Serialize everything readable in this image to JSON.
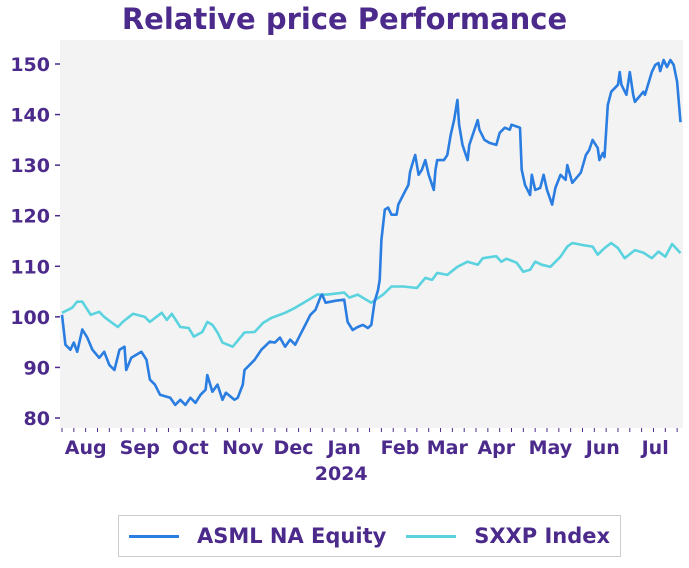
{
  "chart_data": {
    "type": "line",
    "title": "Relative price Performance",
    "xlabel": "",
    "ylabel": "",
    "x_unit": "trading days from start (mid-July 2023)",
    "xlim": [
      0,
      366
    ],
    "ylim": [
      79,
      153
    ],
    "yticks": [
      80,
      90,
      100,
      110,
      120,
      130,
      140,
      150
    ],
    "xticks": [
      {
        "x": 14,
        "label": "Aug"
      },
      {
        "x": 46,
        "label": "Sep"
      },
      {
        "x": 76,
        "label": "Oct"
      },
      {
        "x": 107,
        "label": "Nov"
      },
      {
        "x": 137,
        "label": "Dec"
      },
      {
        "x": 167,
        "label": "Jan"
      },
      {
        "x": 200,
        "label": "Feb"
      },
      {
        "x": 228,
        "label": "Mar"
      },
      {
        "x": 257,
        "label": "Apr"
      },
      {
        "x": 289,
        "label": "May"
      },
      {
        "x": 320,
        "label": "Jun"
      },
      {
        "x": 351,
        "label": "Jul"
      }
    ],
    "year_label": {
      "x": 167,
      "label": "2024"
    },
    "grid": false,
    "legend_position": "bottom",
    "series": [
      {
        "name": "ASML NA Equity",
        "color": "#2a7de1",
        "points": [
          [
            0,
            100.4
          ],
          [
            2,
            94.5
          ],
          [
            5,
            93.5
          ],
          [
            7,
            94.9
          ],
          [
            9,
            93.1
          ],
          [
            12,
            97.5
          ],
          [
            15,
            95.9
          ],
          [
            18,
            93.5
          ],
          [
            22,
            91.9
          ],
          [
            25,
            93.1
          ],
          [
            28,
            90.5
          ],
          [
            31,
            89.5
          ],
          [
            34,
            93.5
          ],
          [
            37,
            94.1
          ],
          [
            38,
            89.5
          ],
          [
            41,
            91.9
          ],
          [
            47,
            93.1
          ],
          [
            50,
            91.5
          ],
          [
            52,
            87.6
          ],
          [
            55,
            86.6
          ],
          [
            58,
            84.6
          ],
          [
            64,
            84.0
          ],
          [
            67,
            82.6
          ],
          [
            70,
            83.6
          ],
          [
            73,
            82.6
          ],
          [
            76,
            84.0
          ],
          [
            79,
            83.0
          ],
          [
            82,
            84.6
          ],
          [
            85,
            85.6
          ],
          [
            86,
            88.5
          ],
          [
            89,
            85.2
          ],
          [
            92,
            86.6
          ],
          [
            95,
            83.6
          ],
          [
            97,
            85.0
          ],
          [
            102,
            83.6
          ],
          [
            104,
            84.0
          ],
          [
            107,
            86.6
          ],
          [
            108,
            89.5
          ],
          [
            111,
            90.5
          ],
          [
            114,
            91.5
          ],
          [
            118,
            93.5
          ],
          [
            123,
            95.1
          ],
          [
            126,
            94.9
          ],
          [
            129,
            95.9
          ],
          [
            132,
            94.1
          ],
          [
            135,
            95.5
          ],
          [
            138,
            94.5
          ],
          [
            141,
            96.5
          ],
          [
            144,
            98.4
          ],
          [
            147,
            100.4
          ],
          [
            150,
            101.4
          ],
          [
            153,
            104.0
          ],
          [
            154,
            104.4
          ],
          [
            156,
            102.8
          ],
          [
            162,
            103.2
          ],
          [
            167,
            103.4
          ],
          [
            169,
            99.0
          ],
          [
            172,
            97.4
          ],
          [
            175,
            98.0
          ],
          [
            178,
            98.4
          ],
          [
            181,
            97.8
          ],
          [
            183,
            98.4
          ],
          [
            185,
            103.0
          ],
          [
            187,
            105.3
          ],
          [
            188,
            107.3
          ],
          [
            189,
            115.2
          ],
          [
            191,
            121.2
          ],
          [
            193,
            121.6
          ],
          [
            195,
            120.2
          ],
          [
            198,
            120.2
          ],
          [
            199,
            122.2
          ],
          [
            202,
            124.2
          ],
          [
            205,
            126.1
          ],
          [
            206,
            128.7
          ],
          [
            208,
            131.0
          ],
          [
            209,
            132.0
          ],
          [
            211,
            128.1
          ],
          [
            213,
            129.1
          ],
          [
            215,
            131.0
          ],
          [
            217,
            128.1
          ],
          [
            220,
            125.1
          ],
          [
            221,
            129.1
          ],
          [
            222,
            131.0
          ],
          [
            226,
            131.0
          ],
          [
            228,
            132.0
          ],
          [
            230,
            136.0
          ],
          [
            232,
            138.9
          ],
          [
            234,
            142.9
          ],
          [
            235,
            138.0
          ],
          [
            237,
            134.0
          ],
          [
            238,
            133.0
          ],
          [
            240,
            131.0
          ],
          [
            241,
            134.0
          ],
          [
            246,
            138.9
          ],
          [
            247,
            137.0
          ],
          [
            250,
            135.0
          ],
          [
            253,
            134.4
          ],
          [
            257,
            134.0
          ],
          [
            259,
            136.4
          ],
          [
            262,
            137.4
          ],
          [
            265,
            137.0
          ],
          [
            266,
            138.0
          ],
          [
            271,
            137.4
          ],
          [
            272,
            129.1
          ],
          [
            274,
            126.1
          ],
          [
            277,
            124.1
          ],
          [
            278,
            128.1
          ],
          [
            280,
            125.1
          ],
          [
            283,
            125.5
          ],
          [
            285,
            128.1
          ],
          [
            287,
            125.1
          ],
          [
            290,
            122.2
          ],
          [
            292,
            125.5
          ],
          [
            295,
            128.1
          ],
          [
            298,
            127.1
          ],
          [
            299,
            130.0
          ],
          [
            302,
            126.5
          ],
          [
            307,
            128.5
          ],
          [
            310,
            132.0
          ],
          [
            312,
            133.0
          ],
          [
            314,
            135.0
          ],
          [
            317,
            133.4
          ],
          [
            318,
            131.0
          ],
          [
            320,
            132.4
          ],
          [
            321,
            131.6
          ],
          [
            323,
            141.9
          ],
          [
            325,
            144.5
          ],
          [
            329,
            145.9
          ],
          [
            330,
            148.4
          ],
          [
            331,
            145.9
          ],
          [
            334,
            143.9
          ],
          [
            336,
            148.4
          ],
          [
            338,
            143.9
          ],
          [
            339,
            142.5
          ],
          [
            344,
            144.5
          ],
          [
            345,
            143.9
          ],
          [
            349,
            148.4
          ],
          [
            351,
            149.8
          ],
          [
            353,
            150.2
          ],
          [
            354,
            148.6
          ],
          [
            356,
            150.8
          ],
          [
            358,
            149.4
          ],
          [
            360,
            150.8
          ],
          [
            362,
            149.8
          ],
          [
            364,
            146.5
          ],
          [
            366,
            138.5
          ]
        ]
      },
      {
        "name": "SXXP Index",
        "color": "#5ad3df",
        "points": [
          [
            0,
            100.8
          ],
          [
            6,
            101.8
          ],
          [
            9,
            103.0
          ],
          [
            12,
            103.0
          ],
          [
            17,
            100.4
          ],
          [
            22,
            101.0
          ],
          [
            25,
            100.0
          ],
          [
            33,
            98.0
          ],
          [
            36,
            99.0
          ],
          [
            42,
            100.6
          ],
          [
            49,
            100.0
          ],
          [
            52,
            99.0
          ],
          [
            59,
            100.8
          ],
          [
            62,
            99.4
          ],
          [
            65,
            100.6
          ],
          [
            70,
            98.0
          ],
          [
            75,
            97.8
          ],
          [
            78,
            96.1
          ],
          [
            83,
            97.0
          ],
          [
            86,
            99.0
          ],
          [
            89,
            98.4
          ],
          [
            92,
            96.9
          ],
          [
            95,
            94.9
          ],
          [
            101,
            94.1
          ],
          [
            108,
            96.9
          ],
          [
            114,
            97.0
          ],
          [
            119,
            98.8
          ],
          [
            124,
            99.8
          ],
          [
            132,
            100.8
          ],
          [
            138,
            101.8
          ],
          [
            146,
            103.4
          ],
          [
            151,
            104.4
          ],
          [
            157,
            104.4
          ],
          [
            167,
            104.8
          ],
          [
            170,
            103.8
          ],
          [
            175,
            104.4
          ],
          [
            183,
            102.8
          ],
          [
            190,
            104.4
          ],
          [
            195,
            106.0
          ],
          [
            202,
            106.0
          ],
          [
            210,
            105.7
          ],
          [
            215,
            107.7
          ],
          [
            219,
            107.3
          ],
          [
            222,
            108.7
          ],
          [
            228,
            108.3
          ],
          [
            234,
            109.9
          ],
          [
            240,
            110.9
          ],
          [
            246,
            110.3
          ],
          [
            249,
            111.6
          ],
          [
            257,
            112.0
          ],
          [
            260,
            110.9
          ],
          [
            263,
            111.5
          ],
          [
            269,
            110.7
          ],
          [
            273,
            108.9
          ],
          [
            277,
            109.3
          ],
          [
            280,
            110.9
          ],
          [
            284,
            110.3
          ],
          [
            289,
            109.9
          ],
          [
            295,
            111.9
          ],
          [
            299,
            113.9
          ],
          [
            302,
            114.6
          ],
          [
            308,
            114.2
          ],
          [
            314,
            113.9
          ],
          [
            317,
            112.3
          ],
          [
            321,
            113.6
          ],
          [
            325,
            114.6
          ],
          [
            329,
            113.6
          ],
          [
            333,
            111.6
          ],
          [
            339,
            113.2
          ],
          [
            344,
            112.7
          ],
          [
            349,
            111.6
          ],
          [
            353,
            112.9
          ],
          [
            357,
            111.9
          ],
          [
            361,
            114.4
          ],
          [
            366,
            112.6
          ]
        ]
      }
    ]
  }
}
